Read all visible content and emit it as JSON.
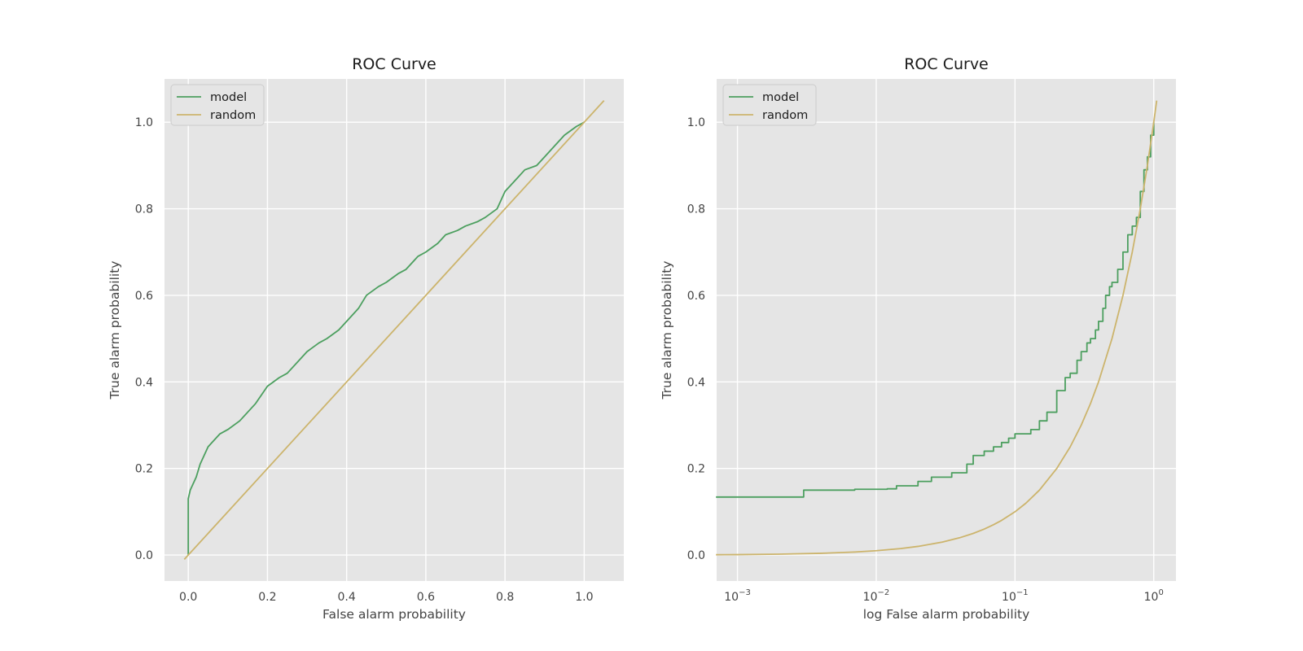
{
  "colors": {
    "model": "#4c9f5f",
    "random": "#ccb46c",
    "panel_bg": "#e5e5e5",
    "grid": "#ffffff"
  },
  "chart_data": [
    {
      "type": "line",
      "title": "ROC Curve",
      "xlabel": "False alarm probability",
      "ylabel": "True alarm probability",
      "xscale": "linear",
      "xlim": [
        -0.06,
        1.1
      ],
      "ylim": [
        -0.06,
        1.1
      ],
      "xticks": [
        0.0,
        0.2,
        0.4,
        0.6,
        0.8,
        1.0
      ],
      "xtick_labels": [
        "0.0",
        "0.2",
        "0.4",
        "0.6",
        "0.8",
        "1.0"
      ],
      "yticks": [
        0.0,
        0.2,
        0.4,
        0.6,
        0.8,
        1.0
      ],
      "ytick_labels": [
        "0.0",
        "0.2",
        "0.4",
        "0.6",
        "0.8",
        "1.0"
      ],
      "grid": true,
      "legend": "upper-left",
      "series": [
        {
          "name": "model",
          "color_key": "model",
          "x": [
            0.0,
            0.0,
            0.005,
            0.01,
            0.02,
            0.03,
            0.04,
            0.05,
            0.06,
            0.08,
            0.1,
            0.13,
            0.15,
            0.17,
            0.2,
            0.23,
            0.25,
            0.28,
            0.3,
            0.33,
            0.35,
            0.38,
            0.4,
            0.43,
            0.45,
            0.48,
            0.5,
            0.53,
            0.55,
            0.58,
            0.6,
            0.63,
            0.65,
            0.68,
            0.7,
            0.73,
            0.75,
            0.78,
            0.8,
            0.83,
            0.85,
            0.88,
            0.9,
            0.93,
            0.95,
            0.98,
            1.0
          ],
          "y": [
            0.0,
            0.13,
            0.15,
            0.16,
            0.18,
            0.21,
            0.23,
            0.25,
            0.26,
            0.28,
            0.29,
            0.31,
            0.33,
            0.35,
            0.39,
            0.41,
            0.42,
            0.45,
            0.47,
            0.49,
            0.5,
            0.52,
            0.54,
            0.57,
            0.6,
            0.62,
            0.63,
            0.65,
            0.66,
            0.69,
            0.7,
            0.72,
            0.74,
            0.75,
            0.76,
            0.77,
            0.78,
            0.8,
            0.84,
            0.87,
            0.89,
            0.9,
            0.92,
            0.95,
            0.97,
            0.99,
            1.0
          ]
        },
        {
          "name": "random",
          "color_key": "random",
          "x": [
            -0.01,
            1.05
          ],
          "y": [
            -0.01,
            1.05
          ]
        }
      ]
    },
    {
      "type": "line",
      "title": "ROC Curve",
      "xlabel": "log False alarm probability",
      "ylabel": "True alarm probability",
      "xscale": "log",
      "xlim_log10": [
        -3.15,
        0.16
      ],
      "ylim": [
        -0.06,
        1.1
      ],
      "xticks_log10": [
        -3,
        -2,
        -1,
        0
      ],
      "xtick_labels": [
        {
          "base": "10",
          "exp": "−3"
        },
        {
          "base": "10",
          "exp": "−2"
        },
        {
          "base": "10",
          "exp": "−1"
        },
        {
          "base": "10",
          "exp": "0"
        }
      ],
      "yticks": [
        0.0,
        0.2,
        0.4,
        0.6,
        0.8,
        1.0
      ],
      "ytick_labels": [
        "0.0",
        "0.2",
        "0.4",
        "0.6",
        "0.8",
        "1.0"
      ],
      "grid": true,
      "legend": "upper-left",
      "series": [
        {
          "name": "model",
          "color_key": "model",
          "x": [
            0.0007,
            0.003,
            0.003,
            0.007,
            0.012,
            0.014,
            0.02,
            0.025,
            0.035,
            0.045,
            0.05,
            0.06,
            0.07,
            0.08,
            0.09,
            0.1,
            0.13,
            0.15,
            0.17,
            0.2,
            0.23,
            0.25,
            0.28,
            0.3,
            0.33,
            0.35,
            0.38,
            0.4,
            0.43,
            0.45,
            0.48,
            0.5,
            0.55,
            0.6,
            0.65,
            0.7,
            0.75,
            0.8,
            0.85,
            0.9,
            0.95,
            1.0
          ],
          "y": [
            0.134,
            0.134,
            0.15,
            0.152,
            0.153,
            0.16,
            0.17,
            0.18,
            0.19,
            0.21,
            0.23,
            0.24,
            0.25,
            0.26,
            0.27,
            0.28,
            0.29,
            0.31,
            0.33,
            0.38,
            0.41,
            0.42,
            0.45,
            0.47,
            0.49,
            0.5,
            0.52,
            0.54,
            0.57,
            0.6,
            0.62,
            0.63,
            0.66,
            0.7,
            0.74,
            0.76,
            0.78,
            0.84,
            0.89,
            0.92,
            0.97,
            1.0
          ],
          "step": true
        },
        {
          "name": "random",
          "color_key": "random",
          "x": [
            0.0007,
            0.001,
            0.002,
            0.004,
            0.007,
            0.01,
            0.015,
            0.02,
            0.03,
            0.04,
            0.05,
            0.06,
            0.07,
            0.08,
            0.1,
            0.12,
            0.15,
            0.2,
            0.25,
            0.3,
            0.35,
            0.4,
            0.5,
            0.6,
            0.7,
            0.8,
            0.9,
            1.0,
            1.05
          ],
          "y": [
            0.0007,
            0.001,
            0.002,
            0.004,
            0.007,
            0.01,
            0.015,
            0.02,
            0.03,
            0.04,
            0.05,
            0.06,
            0.07,
            0.08,
            0.1,
            0.12,
            0.15,
            0.2,
            0.25,
            0.3,
            0.35,
            0.4,
            0.5,
            0.6,
            0.7,
            0.8,
            0.9,
            1.0,
            1.05
          ]
        }
      ]
    }
  ]
}
